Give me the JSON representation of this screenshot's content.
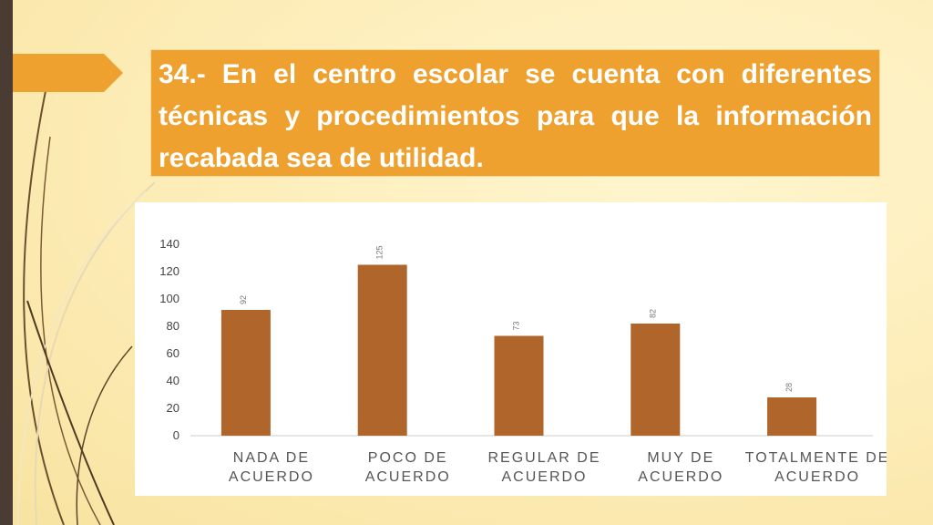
{
  "slide": {
    "title": "34.- En el centro escolar se cuenta con diferentes técnicas y procedimientos para que la información recabada sea de utilidad.",
    "accent_color": "#eea12f",
    "side_bar_color": "#4a3c33"
  },
  "chart_data": {
    "type": "bar",
    "categories": [
      [
        "NADA DE",
        "ACUERDO"
      ],
      [
        "POCO DE",
        "ACUERDO"
      ],
      [
        "REGULAR DE",
        "ACUERDO"
      ],
      [
        "MUY DE",
        "ACUERDO"
      ],
      [
        "TOTALMENTE DE",
        "ACUERDO"
      ]
    ],
    "values": [
      92,
      125,
      73,
      82,
      28
    ],
    "data_labels": [
      "92",
      "125",
      "73",
      "82",
      "28"
    ],
    "yticks": [
      "0",
      "20",
      "40",
      "60",
      "80",
      "100",
      "120",
      "140"
    ],
    "ylim": [
      0,
      140
    ],
    "bar_color": "#b0652a",
    "grid": false
  }
}
